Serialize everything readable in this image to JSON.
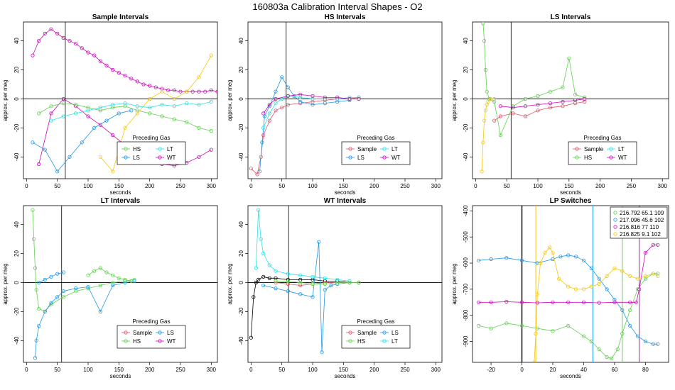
{
  "figure_title": "160803a   Calibration Interval Shapes - O2",
  "colors": {
    "Sample": "#df536b",
    "HS": "#61d04f",
    "LS": "#2297e6",
    "LT": "#28e2e5",
    "WT": "#cd0bbc",
    "amber": "#f5c710",
    "black": "#000000"
  },
  "chart_data": [
    {
      "id": "sample",
      "type": "scatter",
      "title": "Sample Intervals",
      "xlabel": "seconds",
      "ylabel": "approx. per meg",
      "xlim": [
        -5,
        310
      ],
      "ylim": [
        -55,
        53
      ],
      "xticks": [
        0,
        50,
        100,
        150,
        200,
        250,
        300
      ],
      "yticks": [
        -40,
        -20,
        0,
        20,
        40
      ],
      "vline": 63,
      "legend": {
        "title": "Preceding Gas",
        "entries": [
          "HS",
          "LT",
          "LS",
          "WT"
        ],
        "position": "bottom-right"
      },
      "series": [
        {
          "name": "WT",
          "color": "WT",
          "x": [
            10,
            20,
            30,
            40,
            50,
            60,
            70,
            80,
            90,
            100,
            110,
            120,
            130,
            140,
            150,
            160,
            170,
            180,
            190,
            200,
            210,
            220,
            230,
            240,
            250,
            260,
            270,
            280,
            290,
            300,
            310
          ],
          "y": [
            30,
            40,
            45,
            48,
            45,
            42,
            40,
            38,
            35,
            32,
            30,
            26,
            23,
            20,
            18,
            16,
            14,
            12,
            10,
            9,
            8,
            7,
            6,
            6,
            5,
            5,
            5,
            5,
            5,
            6,
            5
          ]
        },
        {
          "name": "WT",
          "color": "WT",
          "x": [
            20,
            40,
            60,
            80,
            100,
            120,
            140,
            160,
            180,
            200,
            220,
            240,
            260,
            280,
            300
          ],
          "y": [
            -45,
            -10,
            0,
            -5,
            -12,
            -18,
            -25,
            -32,
            -38,
            -42,
            -45,
            -46,
            -44,
            -40,
            -35
          ]
        },
        {
          "name": "HS",
          "color": "HS",
          "x": [
            20,
            40,
            60,
            80,
            100,
            120,
            140,
            160,
            180,
            200,
            220,
            240,
            260,
            280,
            300
          ],
          "y": [
            -10,
            -5,
            -3,
            -4,
            -6,
            -8,
            -6,
            -5,
            -8,
            -10,
            -12,
            -14,
            -16,
            -20,
            -22
          ]
        },
        {
          "name": "LT",
          "color": "LT",
          "x": [
            40,
            60,
            80,
            100,
            120,
            140,
            160,
            180,
            200,
            220,
            240,
            260,
            280,
            300
          ],
          "y": [
            -15,
            -12,
            -10,
            -8,
            -6,
            -4,
            -3,
            -5,
            -6,
            -4,
            -5,
            -3,
            -4,
            -2
          ]
        },
        {
          "name": "LS",
          "color": "LS",
          "x": [
            10,
            30,
            50,
            70,
            90,
            110,
            130,
            150,
            170
          ],
          "y": [
            -30,
            -35,
            -50,
            -40,
            -30,
            -20,
            -15,
            -10,
            -8
          ]
        },
        {
          "name": "amber",
          "color": "amber",
          "x": [
            120,
            140,
            160,
            180,
            200,
            220,
            240,
            260,
            280,
            300
          ],
          "y": [
            -40,
            -50,
            -20,
            -10,
            0,
            5,
            0,
            5,
            15,
            30
          ]
        }
      ]
    },
    {
      "id": "hs",
      "type": "scatter",
      "title": "HS Intervals",
      "xlabel": "seconds",
      "ylabel": "approx. per meg",
      "xlim": [
        -5,
        310
      ],
      "ylim": [
        -55,
        53
      ],
      "xticks": [
        0,
        50,
        100,
        150,
        200,
        250,
        300
      ],
      "yticks": [
        -40,
        -20,
        0,
        20,
        40
      ],
      "vline": 57,
      "legend": {
        "title": "Preceding Gas",
        "entries": [
          "Sample",
          "LT",
          "LS",
          "WT"
        ],
        "position": "bottom-right"
      },
      "series": [
        {
          "name": "Sample",
          "color": "Sample",
          "x": [
            0,
            10,
            16,
            20,
            30,
            40,
            50,
            60,
            80,
            100,
            120,
            140,
            160,
            175
          ],
          "y": [
            -48,
            -52,
            -40,
            -25,
            -15,
            -8,
            -6,
            -4,
            -3,
            -2,
            -1,
            0,
            0,
            1
          ]
        },
        {
          "name": "LS",
          "color": "LS",
          "x": [
            14,
            18,
            22,
            30,
            40,
            50,
            60,
            70,
            80,
            100,
            120,
            140,
            160
          ],
          "y": [
            -50,
            -30,
            -12,
            -5,
            5,
            15,
            8,
            2,
            -2,
            -4,
            -3,
            -2,
            -1
          ]
        },
        {
          "name": "LT",
          "color": "LT",
          "x": [
            20,
            30,
            40,
            50,
            60,
            80,
            100,
            120,
            140,
            160,
            175
          ],
          "y": [
            -20,
            -10,
            -3,
            0,
            2,
            1,
            0,
            0,
            0,
            1,
            1
          ]
        },
        {
          "name": "WT",
          "color": "WT",
          "x": [
            20,
            30,
            40,
            60,
            80,
            100,
            120,
            140,
            160,
            175
          ],
          "y": [
            -10,
            -4,
            0,
            2,
            3,
            2,
            1,
            1,
            0,
            0
          ]
        }
      ]
    },
    {
      "id": "ls",
      "type": "scatter",
      "title": "LS Intervals",
      "xlabel": "seconds",
      "ylabel": "approx. per meg",
      "xlim": [
        -5,
        310
      ],
      "ylim": [
        -55,
        53
      ],
      "xticks": [
        0,
        50,
        100,
        150,
        200,
        250,
        300
      ],
      "yticks": [
        -40,
        -20,
        0,
        20,
        40
      ],
      "vline": 57,
      "legend": {
        "title": "Preceding Gas",
        "entries": [
          "Sample",
          "LT",
          "HS",
          "WT"
        ],
        "position": "bottom-right"
      },
      "series": [
        {
          "name": "HS",
          "color": "HS",
          "x": [
            12,
            14,
            16,
            18,
            22,
            30,
            40,
            60,
            80,
            100,
            120,
            140,
            150,
            160,
            175
          ],
          "y": [
            52,
            40,
            20,
            5,
            0,
            -2,
            -25,
            -5,
            0,
            2,
            5,
            8,
            28,
            3,
            1
          ]
        },
        {
          "name": "amber",
          "color": "amber",
          "x": [
            10,
            12,
            14,
            16,
            18,
            20,
            24,
            30
          ],
          "y": [
            -50,
            -30,
            -15,
            -8,
            -4,
            -2,
            0,
            0
          ]
        },
        {
          "name": "Sample",
          "color": "Sample",
          "x": [
            30,
            40,
            60,
            80,
            100,
            120,
            140,
            160,
            175
          ],
          "y": [
            -15,
            -12,
            -10,
            -12,
            -8,
            -6,
            -5,
            -3,
            -2
          ]
        },
        {
          "name": "WT",
          "color": "WT",
          "x": [
            40,
            60,
            80,
            100,
            120,
            140,
            160,
            175
          ],
          "y": [
            -5,
            -6,
            -5,
            -4,
            -3,
            -2,
            -1,
            0
          ]
        }
      ]
    },
    {
      "id": "lt",
      "type": "scatter",
      "title": "LT Intervals",
      "xlabel": "seconds",
      "ylabel": "approx. per meg",
      "xlim": [
        -5,
        310
      ],
      "ylim": [
        -55,
        53
      ],
      "xticks": [
        0,
        50,
        100,
        150,
        200,
        250,
        300
      ],
      "yticks": [
        -40,
        -20,
        0,
        20,
        40
      ],
      "vline": 57,
      "legend": {
        "title": "Preceding Gas",
        "entries": [
          "Sample",
          "LS",
          "HS",
          "WT"
        ],
        "position": "bottom-right"
      },
      "series": [
        {
          "name": "HS",
          "color": "HS",
          "x": [
            10,
            12,
            14,
            16,
            20,
            30,
            40,
            60,
            80,
            100,
            120,
            140,
            160,
            175
          ],
          "y": [
            50,
            30,
            10,
            -5,
            -18,
            -20,
            -15,
            -10,
            -6,
            -4,
            -2,
            0,
            1,
            2
          ]
        },
        {
          "name": "LS",
          "color": "LS",
          "x": [
            14,
            16,
            20,
            30,
            40,
            50,
            60,
            80,
            100,
            120,
            140,
            160,
            175
          ],
          "y": [
            -52,
            -40,
            -30,
            -20,
            -14,
            -10,
            -6,
            -4,
            -3,
            -20,
            -2,
            0,
            1
          ]
        },
        {
          "name": "LS",
          "color": "LS",
          "x": [
            20,
            30,
            40,
            50,
            60
          ],
          "y": [
            0,
            2,
            4,
            6,
            7
          ]
        },
        {
          "name": "HS",
          "color": "HS",
          "x": [
            100,
            110,
            120,
            130,
            140,
            150,
            160,
            170
          ],
          "y": [
            5,
            8,
            10,
            7,
            5,
            3,
            2,
            1
          ]
        }
      ]
    },
    {
      "id": "wt",
      "type": "scatter",
      "title": "WT Intervals",
      "xlabel": "seconds",
      "ylabel": "approx. per meg",
      "xlim": [
        -5,
        310
      ],
      "ylim": [
        -55,
        53
      ],
      "xticks": [
        0,
        50,
        100,
        150,
        200,
        250,
        300
      ],
      "yticks": [
        -40,
        -20,
        0,
        20,
        40
      ],
      "vline": 61,
      "legend": {
        "title": "Preceding Gas",
        "entries": [
          "Sample",
          "LS",
          "HS",
          "LT"
        ],
        "position": "bottom-right"
      },
      "series": [
        {
          "name": "black",
          "color": "black",
          "x": [
            0,
            4,
            8,
            12,
            20,
            30,
            40,
            60,
            80,
            100,
            120,
            140,
            160,
            175
          ],
          "y": [
            -38,
            -10,
            0,
            2,
            4,
            3,
            3,
            2,
            2,
            2,
            1,
            1,
            0,
            0
          ]
        },
        {
          "name": "LT",
          "color": "LT",
          "x": [
            8,
            12,
            16,
            20,
            30,
            40,
            60,
            80,
            100,
            120,
            140,
            160
          ],
          "y": [
            10,
            50,
            30,
            20,
            12,
            8,
            6,
            5,
            4,
            3,
            2,
            1
          ]
        },
        {
          "name": "LS",
          "color": "LS",
          "x": [
            20,
            40,
            60,
            80,
            100,
            110,
            115,
            120,
            130,
            140,
            160,
            175
          ],
          "y": [
            -2,
            -4,
            -6,
            -8,
            -10,
            28,
            -48,
            -5,
            -2,
            -1,
            0,
            0
          ]
        },
        {
          "name": "Sample",
          "color": "Sample",
          "x": [
            40,
            60,
            80,
            100,
            120,
            140,
            160,
            175
          ],
          "y": [
            0,
            -1,
            -2,
            -1,
            0,
            0,
            0,
            0
          ]
        },
        {
          "name": "HS",
          "color": "HS",
          "x": [
            40,
            60,
            80,
            100,
            120,
            140,
            160,
            175
          ],
          "y": [
            1,
            1,
            0,
            -1,
            -1,
            0,
            0,
            0
          ]
        }
      ]
    },
    {
      "id": "lp",
      "type": "line",
      "title": "LP Switches",
      "xlabel": "seconds",
      "ylabel": "approx. per meg",
      "xlim": [
        -32,
        95
      ],
      "ylim": [
        -980,
        -380
      ],
      "xticks": [
        -20,
        0,
        20,
        40,
        60,
        80
      ],
      "yticks": [
        -900,
        -800,
        -700,
        -600,
        -500,
        -400
      ],
      "vlines": [
        {
          "x": 0,
          "color": "black"
        },
        {
          "x": 9,
          "color": "amber"
        },
        {
          "x": 46,
          "color": "LS"
        },
        {
          "x": 65,
          "color": "HS"
        },
        {
          "x": 76,
          "color": "WT"
        }
      ],
      "legend": {
        "entries": [
          "216.792 65.1 109",
          "217.096 45.6 102",
          "216.816 77 110",
          "216.825 9.1 102"
        ],
        "colors": [
          "HS",
          "LS",
          "WT",
          "amber"
        ],
        "position": "top-right"
      },
      "series": [
        {
          "name": "216.792 65.1 109",
          "color": "HS",
          "x": [
            -28,
            -20,
            -10,
            0,
            10,
            20,
            30,
            40,
            45,
            50,
            55,
            58,
            62,
            65,
            70,
            75,
            80,
            85,
            88
          ],
          "y": [
            -840,
            -850,
            -830,
            -840,
            -850,
            -860,
            -840,
            -880,
            -900,
            -930,
            -960,
            -965,
            -930,
            -870,
            -780,
            -700,
            -660,
            -640,
            -640
          ]
        },
        {
          "name": "217.096 45.6 102",
          "color": "LS",
          "x": [
            -28,
            -20,
            -10,
            0,
            10,
            20,
            25,
            30,
            35,
            40,
            45,
            50,
            55,
            60,
            65,
            70,
            75,
            80,
            85,
            88
          ],
          "y": [
            -590,
            -585,
            -580,
            -590,
            -600,
            -585,
            -575,
            -570,
            -575,
            -590,
            -620,
            -660,
            -700,
            -740,
            -780,
            -840,
            -880,
            -900,
            -910,
            -910
          ]
        },
        {
          "name": "216.816 77 110",
          "color": "WT",
          "x": [
            -28,
            -20,
            -10,
            0,
            10,
            20,
            30,
            40,
            50,
            60,
            70,
            74,
            76,
            80,
            85,
            88
          ],
          "y": [
            -750,
            -750,
            -748,
            -750,
            -752,
            -750,
            -750,
            -750,
            -752,
            -750,
            -750,
            -750,
            -700,
            -560,
            -530,
            -530
          ]
        },
        {
          "name": "216.825 9.1 102",
          "color": "amber",
          "x": [
            8,
            9,
            10,
            12,
            15,
            18,
            20,
            24,
            30,
            35,
            40,
            45,
            50,
            55,
            60,
            65,
            70,
            75,
            80,
            85,
            88
          ],
          "y": [
            -980,
            -870,
            -720,
            -600,
            -560,
            -540,
            -560,
            -660,
            -690,
            -700,
            -700,
            -690,
            -680,
            -650,
            -620,
            -630,
            -650,
            -660,
            -650,
            -640,
            -650
          ]
        }
      ]
    }
  ]
}
